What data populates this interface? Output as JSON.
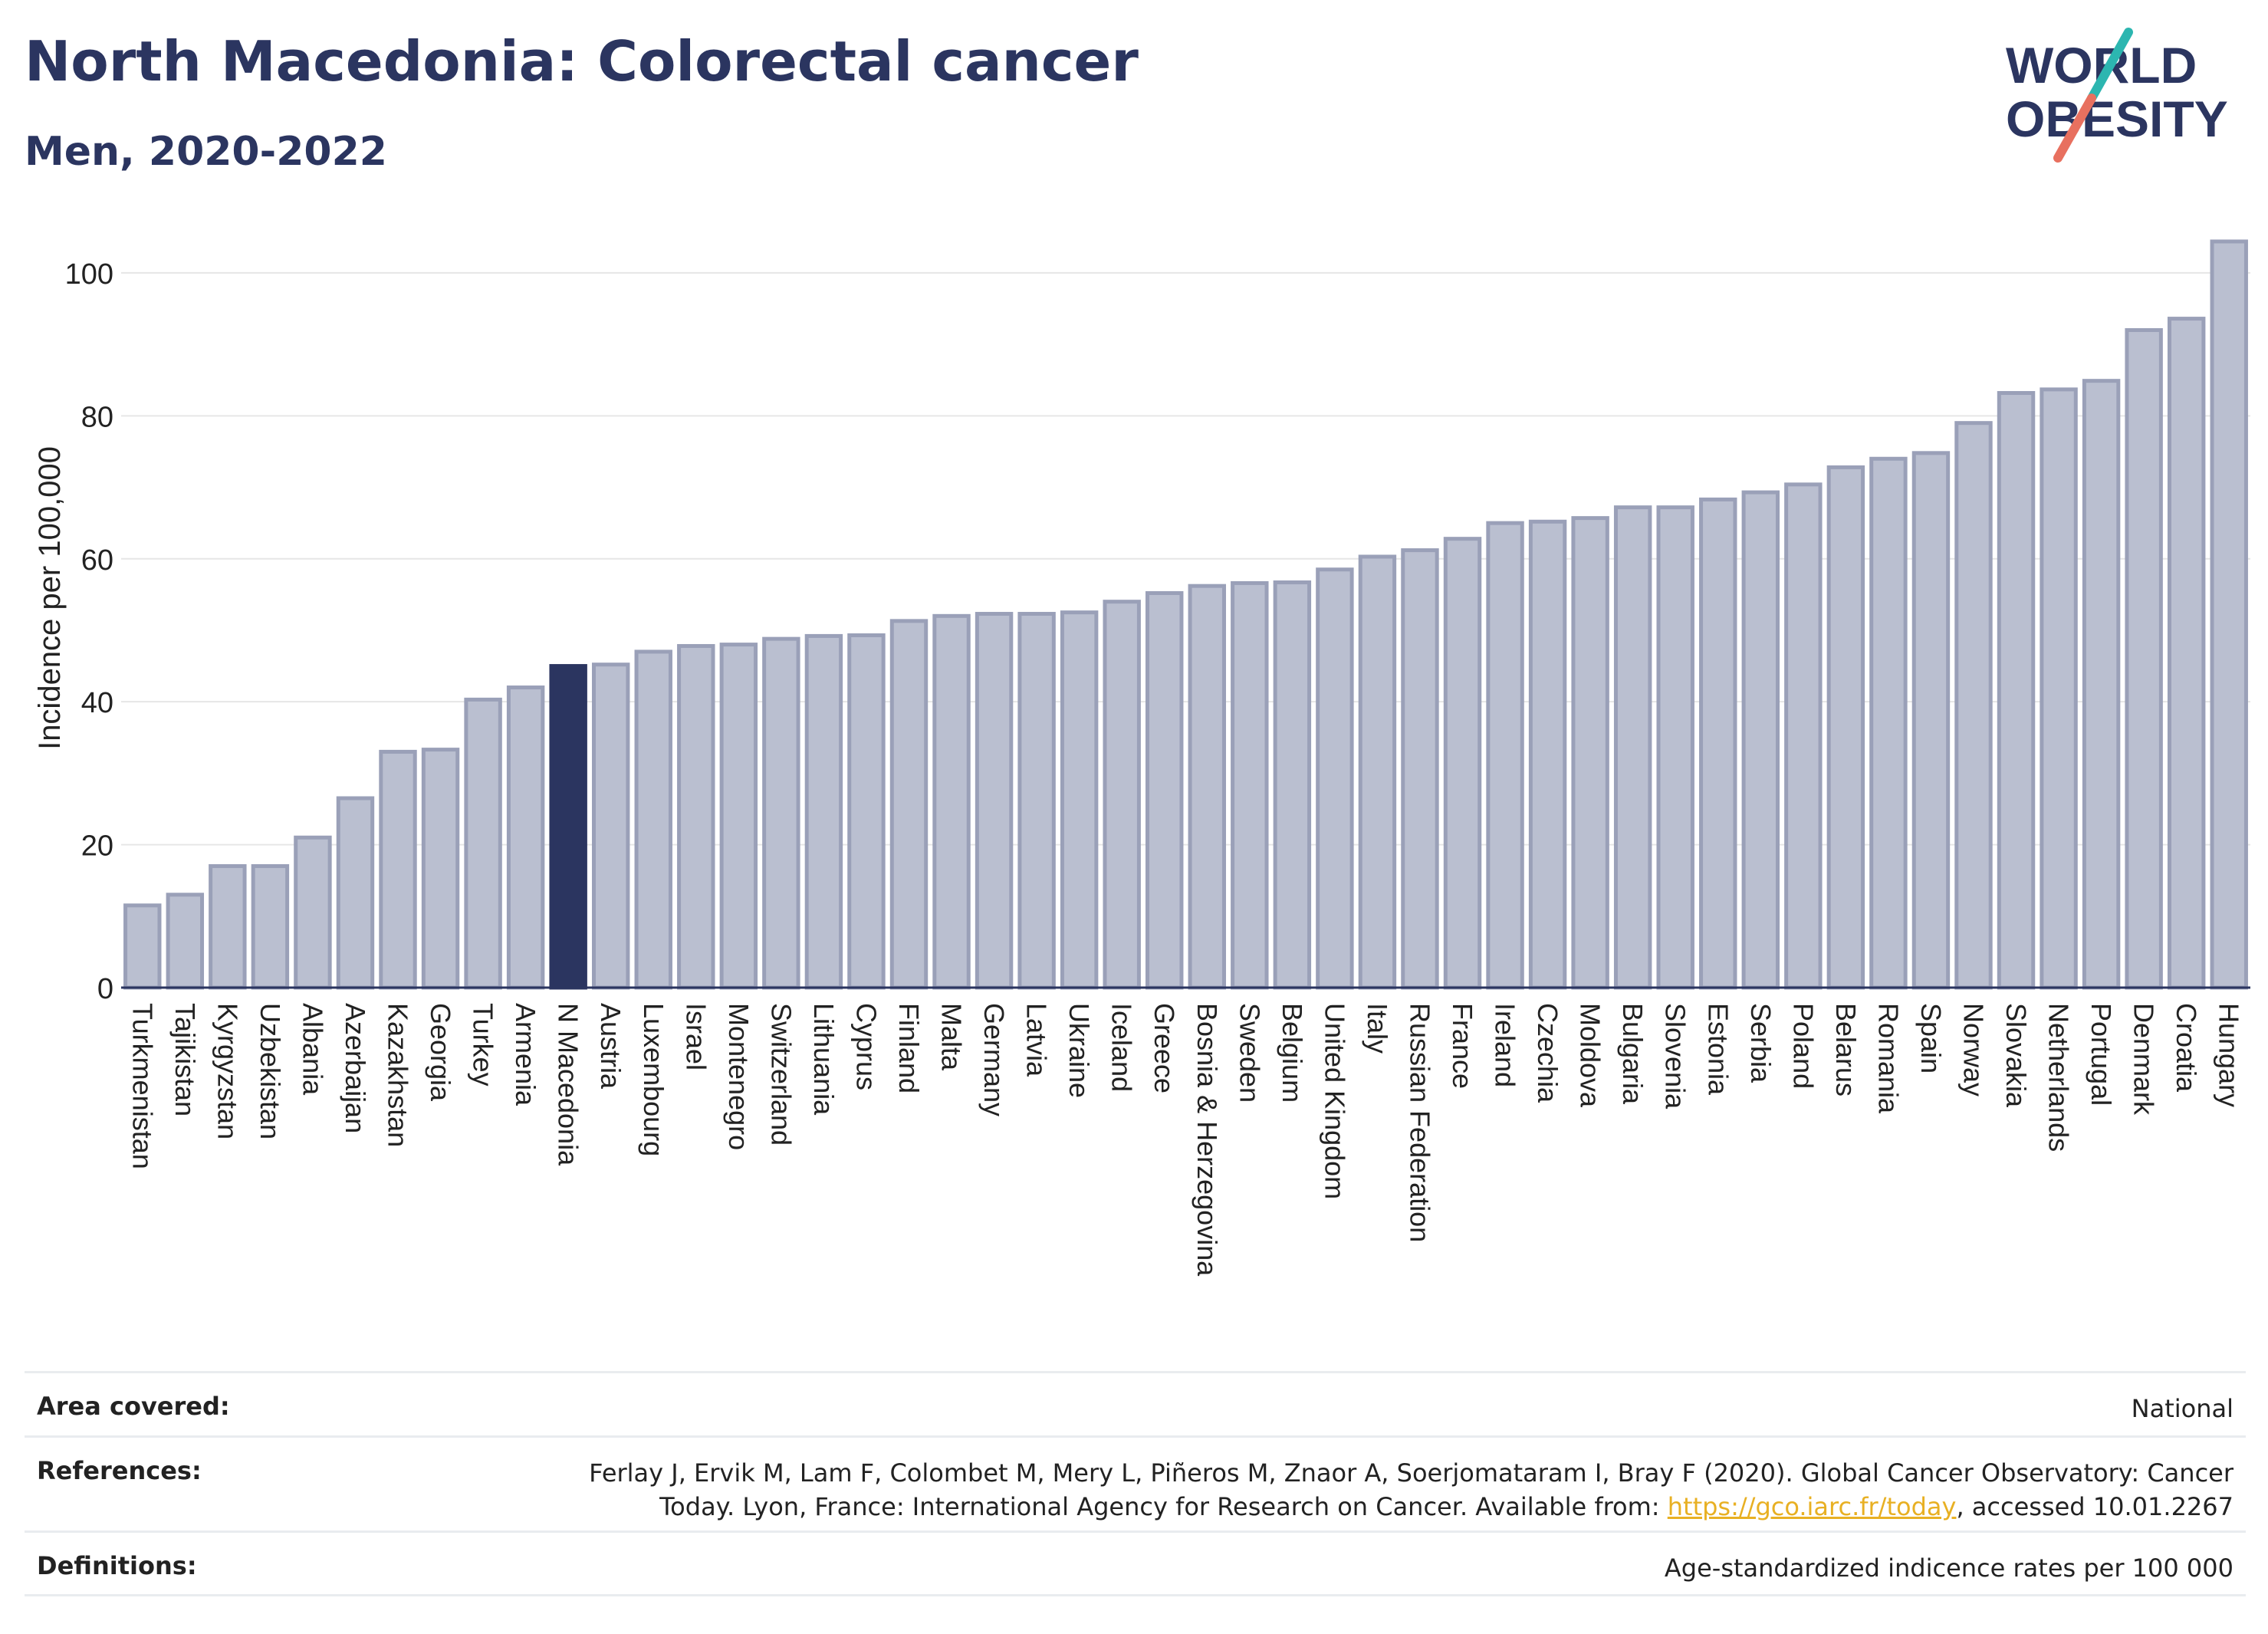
{
  "header": {
    "title": "North Macedonia: Colorectal cancer",
    "subtitle": "Men, 2020-2022"
  },
  "logo": {
    "line1": "WORLD",
    "line2": "OBESITY",
    "colors": {
      "text": "#2b3560",
      "slash_top": "#2cb6b0",
      "slash_bottom": "#e8705f"
    }
  },
  "colors": {
    "bar": "#babfd0",
    "bar_stroke": "#9aa0b8",
    "highlight": "#2b3560",
    "axis_text": "#222222",
    "grid": "#e6e6e6",
    "link": "#e8b023"
  },
  "chart_data": {
    "type": "bar",
    "ylabel": "Incidence per 100,000",
    "ylim": [
      0,
      106
    ],
    "yticks": [
      0,
      20,
      40,
      60,
      80,
      100
    ],
    "grid": true,
    "highlight_category": "N Macedonia",
    "categories": [
      "Turkmenistan",
      "Tajikistan",
      "Kyrgyzstan",
      "Uzbekistan",
      "Albania",
      "Azerbaijan",
      "Kazakhstan",
      "Georgia",
      "Turkey",
      "Armenia",
      "N Macedonia",
      "Austria",
      "Luxembourg",
      "Israel",
      "Montenegro",
      "Switzerland",
      "Lithuania",
      "Cyprus",
      "Finland",
      "Malta",
      "Germany",
      "Latvia",
      "Ukraine",
      "Iceland",
      "Greece",
      "Bosnia & Herzegovina",
      "Sweden",
      "Belgium",
      "United Kingdom",
      "Italy",
      "Russian Federation",
      "France",
      "Ireland",
      "Czechia",
      "Moldova",
      "Bulgaria",
      "Slovenia",
      "Estonia",
      "Serbia",
      "Poland",
      "Belarus",
      "Romania",
      "Spain",
      "Norway",
      "Slovakia",
      "Netherlands",
      "Portugal",
      "Denmark",
      "Croatia",
      "Hungary"
    ],
    "values": [
      11.5,
      13,
      17,
      17,
      21,
      26.5,
      33,
      33.3,
      40.3,
      42,
      45,
      45.2,
      47,
      47.8,
      48,
      48.8,
      49.2,
      49.3,
      51.3,
      52,
      52.3,
      52.3,
      52.5,
      54,
      55.2,
      56.2,
      56.6,
      56.7,
      58.5,
      60.3,
      61.2,
      62.8,
      65,
      65.2,
      65.7,
      67.2,
      67.2,
      68.3,
      69.3,
      70.4,
      72.8,
      74,
      74.8,
      79,
      83.2,
      83.7,
      84.9,
      92,
      93.6,
      104.4
    ]
  },
  "info_table": {
    "area_label": "Area covered:",
    "area_value": "National",
    "references_label": "References:",
    "references_text_1": "Ferlay J, Ervik M, Lam F, Colombet M, Mery L, Piñeros M, Znaor A, Soerjomataram I, Bray F (2020). Global Cancer Observatory: Cancer Today. Lyon, France: International Agency for Research on Cancer. Available from: ",
    "references_link": "https://gco.iarc.fr/today",
    "references_text_2": ", accessed 10.01.2267",
    "definitions_label": "Definitions:",
    "definitions_value": "Age-standardized indicence rates per 100 000"
  }
}
